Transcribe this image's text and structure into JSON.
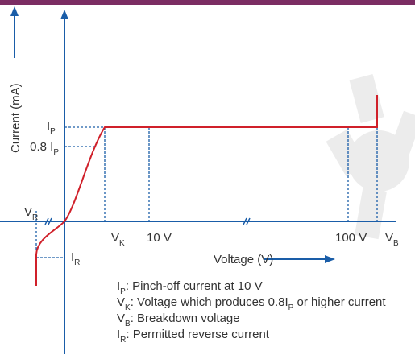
{
  "axes": {
    "y_label": "Current (mA)",
    "x_label": "Voltage (V)"
  },
  "labels": {
    "ip": [
      "I",
      "P"
    ],
    "ip08": [
      "0.8 I",
      "P"
    ],
    "vr": [
      "V",
      "R"
    ],
    "vk": [
      "V",
      "K"
    ],
    "v10": [
      "10 V"
    ],
    "v100": [
      "100 V"
    ],
    "vb": [
      "V",
      "B"
    ],
    "ir": [
      "I",
      "R"
    ]
  },
  "legend": [
    [
      "I",
      "P",
      ": Pinch-off current at 10 V"
    ],
    [
      "V",
      "K",
      ": Voltage which produces 0.8I",
      "P",
      " or higher current"
    ],
    [
      "V",
      "B",
      ": Breakdown voltage"
    ],
    [
      "I",
      "R",
      ": Permitted reverse current"
    ]
  ]
}
